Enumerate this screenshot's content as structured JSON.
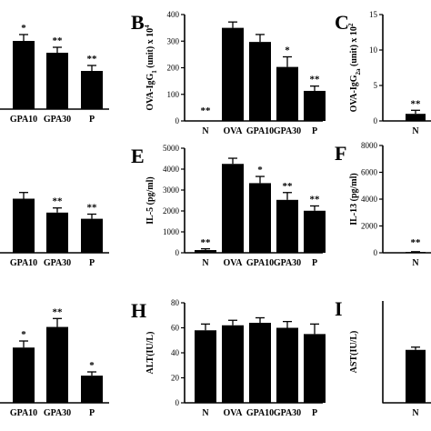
{
  "chart_data": [
    {
      "panel": "",
      "type": "bar",
      "categories": [
        "",
        "GPA10",
        "GPA30",
        "P"
      ],
      "values": [
        null,
        75,
        62,
        42
      ],
      "errors": [
        null,
        7,
        6,
        6
      ],
      "sig": [
        "",
        "*",
        "**",
        "**"
      ],
      "ylabel": "",
      "ylim": [
        0,
        100
      ],
      "yticks": []
    },
    {
      "panel": "B",
      "type": "bar",
      "categories": [
        "N",
        "OVA",
        "GPA10",
        "GPA30",
        "P"
      ],
      "values": [
        0,
        350,
        297,
        203,
        113
      ],
      "errors": [
        0,
        22,
        28,
        38,
        18
      ],
      "sig": [
        "**",
        "",
        "",
        "*",
        "**"
      ],
      "ylabel": "OVA-IgG1 (unit) x 10^4",
      "ylim": [
        0,
        400
      ],
      "yticks": [
        "0",
        "100",
        "200",
        "300",
        "400"
      ]
    },
    {
      "panel": "C",
      "type": "bar",
      "categories": [
        "N"
      ],
      "values": [
        1
      ],
      "errors": [
        0.5
      ],
      "sig": [
        "**"
      ],
      "ylabel": "OVA-IgG2a (unit) x 10^2",
      "ylim": [
        0,
        15
      ],
      "yticks": [
        "0",
        "5",
        "10",
        "15"
      ]
    },
    {
      "panel": "",
      "type": "bar",
      "categories": [
        "GPA10",
        "GPA30",
        "P"
      ],
      "values": [
        70,
        52,
        44
      ],
      "errors": [
        8,
        6,
        6
      ],
      "sig": [
        "",
        "**",
        "**"
      ],
      "ylabel": "",
      "ylim": [
        0,
        100
      ],
      "yticks": []
    },
    {
      "panel": "E",
      "type": "bar",
      "categories": [
        "N",
        "OVA",
        "GPA10",
        "GPA30",
        "P"
      ],
      "values": [
        130,
        4250,
        3330,
        2530,
        2010
      ],
      "errors": [
        60,
        270,
        320,
        350,
        230
      ],
      "sig": [
        "**",
        "",
        "*",
        "**",
        "**"
      ],
      "ylabel": "IL-5 (pg/ml)",
      "ylim": [
        0,
        5000
      ],
      "yticks": [
        "0",
        "1000",
        "2000",
        "3000",
        "4000",
        "5000"
      ]
    },
    {
      "panel": "F",
      "type": "bar",
      "categories": [
        "N"
      ],
      "values": [
        60
      ],
      "errors": [
        20
      ],
      "sig": [
        "**"
      ],
      "ylabel": "IL-13 (pg/ml)",
      "ylim": [
        0,
        8000
      ],
      "yticks": [
        "0",
        "2000",
        "4000",
        "6000",
        "8000"
      ]
    },
    {
      "panel": "",
      "type": "bar",
      "categories": [
        "GPA10",
        "GPA30",
        "P"
      ],
      "values": [
        59,
        81,
        29
      ],
      "errors": [
        7,
        9,
        4
      ],
      "sig": [
        "*",
        "**",
        "*"
      ],
      "ylabel": "",
      "ylim": [
        0,
        100
      ],
      "yticks": []
    },
    {
      "panel": "H",
      "type": "bar",
      "categories": [
        "N",
        "OVA",
        "GPA10",
        "GPA30",
        "P"
      ],
      "values": [
        58,
        62,
        64,
        60,
        55
      ],
      "errors": [
        5,
        4,
        4,
        5,
        8
      ],
      "sig": [
        "",
        "",
        "",
        "",
        ""
      ],
      "ylabel": "ALT(IU/L)",
      "ylim": [
        0,
        80
      ],
      "yticks": [
        "0",
        "20",
        "40",
        "60",
        "80"
      ]
    },
    {
      "panel": "I",
      "type": "bar",
      "categories": [
        "N"
      ],
      "values": [
        78
      ],
      "errors": [
        4
      ],
      "sig": [
        ""
      ],
      "ylabel": "AST(IU/L)",
      "ylim": [
        0,
        150
      ],
      "yticks": []
    }
  ]
}
